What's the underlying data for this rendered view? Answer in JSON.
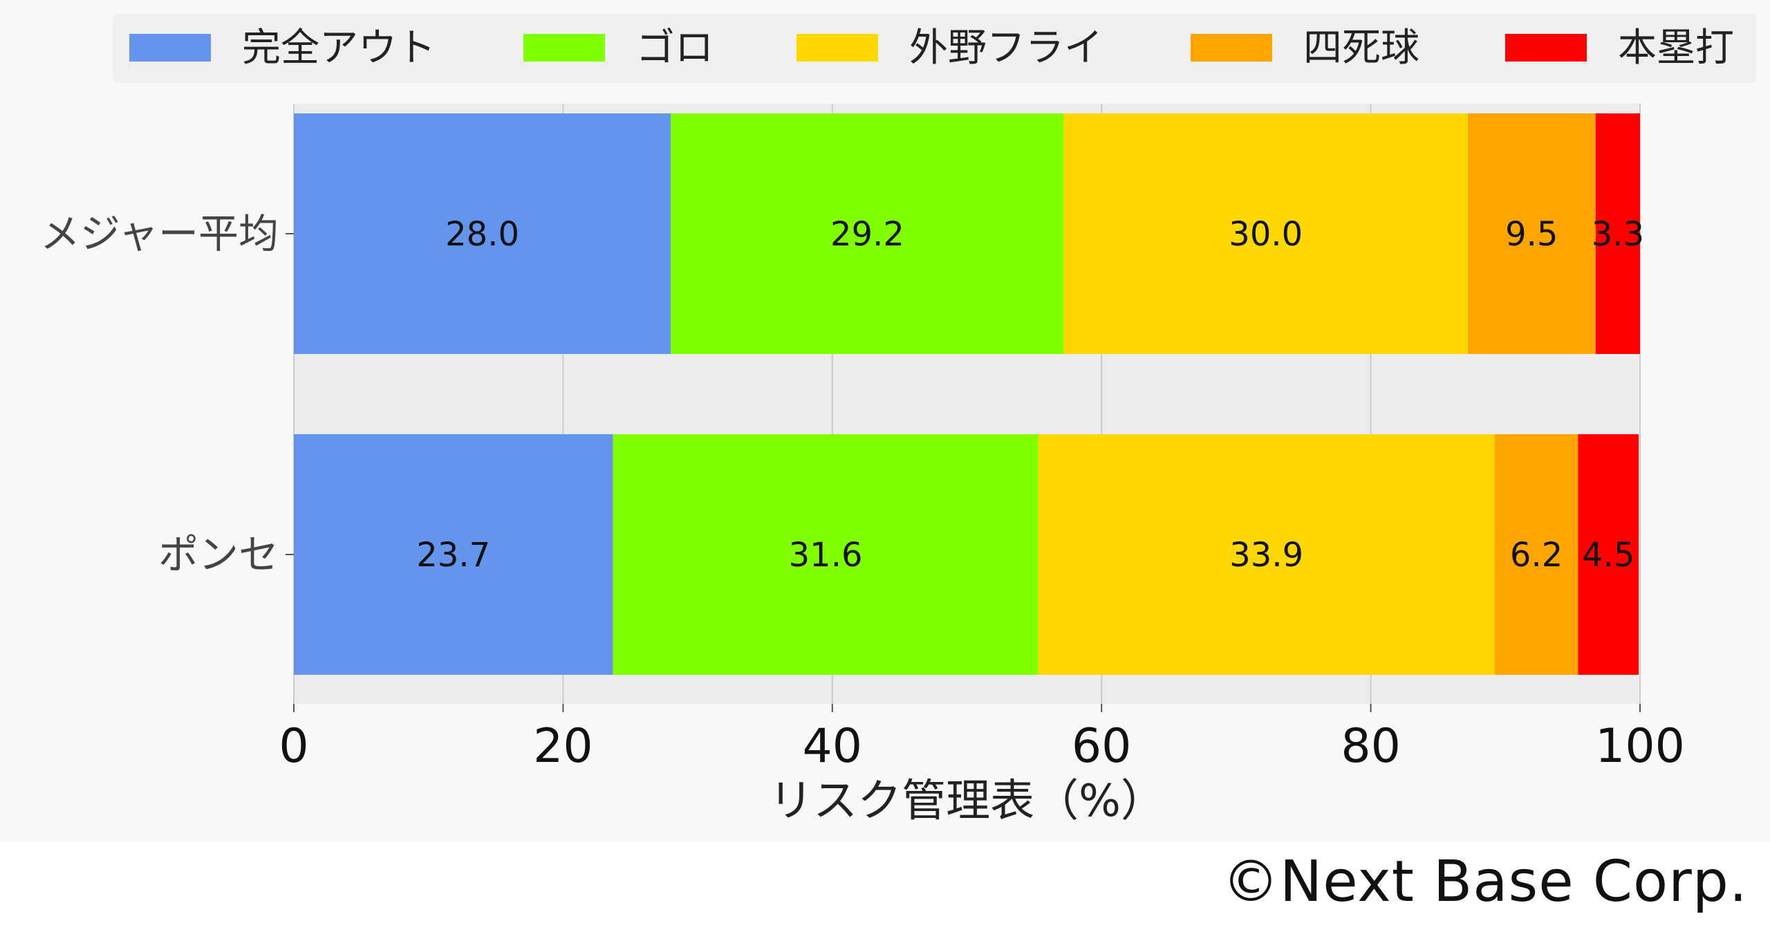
{
  "chart_data": {
    "type": "bar",
    "orientation": "horizontal",
    "stacked": true,
    "categories": [
      "メジャー平均",
      "ポンセ"
    ],
    "series": [
      {
        "name": "完全アウト",
        "color": "#6495ED",
        "values": [
          28.0,
          23.7
        ]
      },
      {
        "name": "ゴロ",
        "color": "#7FFF00",
        "values": [
          29.2,
          31.6
        ]
      },
      {
        "name": "外野フライ",
        "color": "#FFD700",
        "values": [
          30.0,
          33.9
        ]
      },
      {
        "name": "四死球",
        "color": "#FFA500",
        "values": [
          9.5,
          6.2
        ]
      },
      {
        "name": "本塁打",
        "color": "#FF0000",
        "values": [
          3.3,
          4.5
        ]
      }
    ],
    "data_labels": [
      [
        "28.0",
        "29.2",
        "30.0",
        "9.5",
        "3.3"
      ],
      [
        "23.7",
        "31.6",
        "33.9",
        "6.2",
        "4.5"
      ]
    ],
    "xlabel": "リスク管理表（%）",
    "ylabel": "",
    "xlim": [
      0,
      100
    ],
    "xticks": [
      "0",
      "20",
      "40",
      "60",
      "80",
      "100"
    ],
    "grid": true,
    "legend_position": "top"
  },
  "footer": {
    "copyright": "©Next Base Corp."
  }
}
